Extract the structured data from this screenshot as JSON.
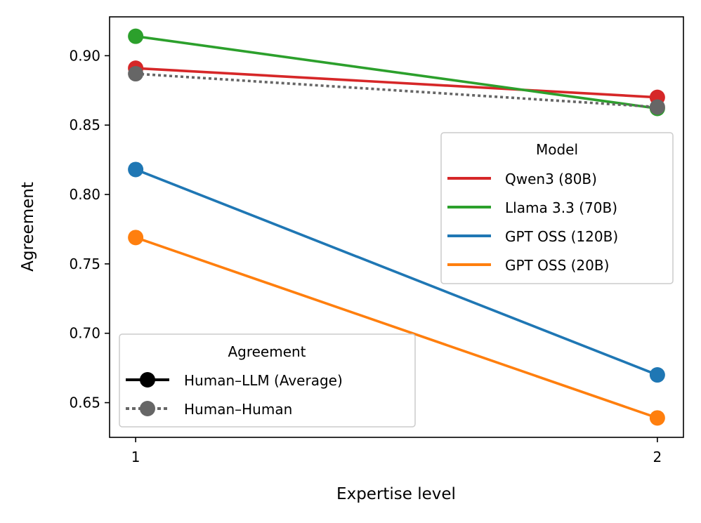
{
  "chart_data": {
    "type": "line",
    "xlabel": "Expertise level",
    "ylabel": "Agreement",
    "x": [
      1,
      2
    ],
    "xticks": [
      "1",
      "2"
    ],
    "xlim": [
      0.95,
      2.05
    ],
    "ylim": [
      0.625,
      0.928
    ],
    "yticks": [
      "0.65",
      "0.70",
      "0.75",
      "0.80",
      "0.85",
      "0.90"
    ],
    "ytick_values": [
      0.65,
      0.7,
      0.75,
      0.8,
      0.85,
      0.9
    ],
    "grid": false,
    "series": [
      {
        "name": "Qwen3 (80B)",
        "group": "Human–LLM (Average)",
        "color": "#d62728",
        "style": "solid",
        "values": [
          0.891,
          0.87
        ]
      },
      {
        "name": "Llama 3.3 (70B)",
        "group": "Human–LLM (Average)",
        "color": "#2ca02c",
        "style": "solid",
        "values": [
          0.914,
          0.862
        ]
      },
      {
        "name": "GPT OSS (120B)",
        "group": "Human–LLM (Average)",
        "color": "#1f77b4",
        "style": "solid",
        "values": [
          0.818,
          0.67
        ]
      },
      {
        "name": "GPT OSS (20B)",
        "group": "Human–LLM (Average)",
        "color": "#ff7f0e",
        "style": "solid",
        "values": [
          0.769,
          0.639
        ]
      },
      {
        "name": "Human–Human",
        "group": "Human–Human",
        "color": "#666666",
        "style": "dotted",
        "values": [
          0.887,
          0.863
        ]
      }
    ],
    "legend_model": {
      "title": "Model",
      "placement": "center-right",
      "entries": [
        {
          "label": "Qwen3 (80B)",
          "color": "#d62728"
        },
        {
          "label": "Llama 3.3 (70B)",
          "color": "#2ca02c"
        },
        {
          "label": "GPT OSS (120B)",
          "color": "#1f77b4"
        },
        {
          "label": "GPT OSS (20B)",
          "color": "#ff7f0e"
        }
      ]
    },
    "legend_agreement": {
      "title": "Agreement",
      "placement": "lower-left",
      "entries": [
        {
          "label": "Human–LLM (Average)",
          "color": "#000000",
          "style": "solid"
        },
        {
          "label": "Human–Human",
          "color": "#666666",
          "style": "dotted"
        }
      ]
    }
  }
}
